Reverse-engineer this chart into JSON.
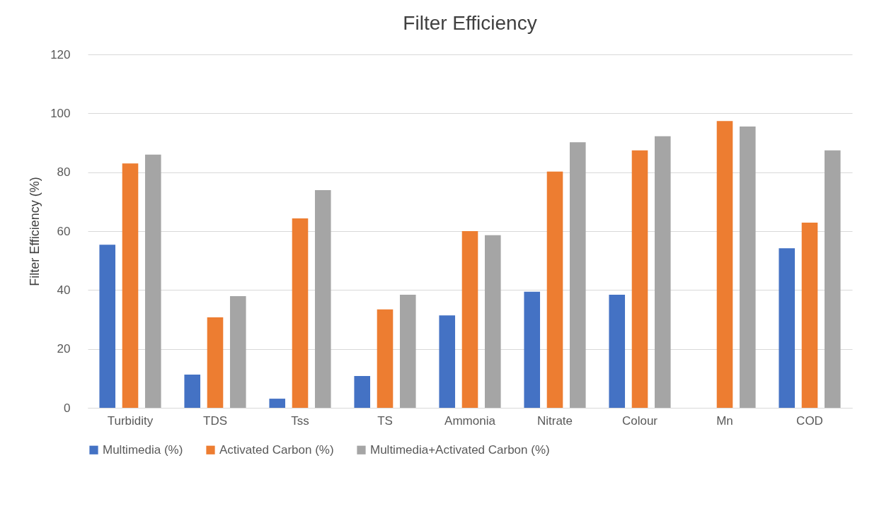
{
  "chart_data": {
    "type": "bar",
    "title": "Filter Efficiency",
    "ylabel": "Filter Efficiency (%)",
    "categories": [
      "Turbidity",
      "TDS",
      "Tss",
      "TS",
      "Ammonia",
      "Nitrate",
      "Colour",
      "Mn",
      "COD"
    ],
    "series": [
      {
        "name": "Multimedia (%)",
        "color": "#4472c4",
        "values": [
          55.4,
          11.3,
          3.1,
          10.8,
          31.4,
          39.4,
          38.4,
          0,
          54.2
        ]
      },
      {
        "name": "Activated Carbon (%)",
        "color": "#ed7d31",
        "values": [
          83,
          30.7,
          64.3,
          33.4,
          60,
          80.2,
          87.4,
          97.4,
          62.9
        ]
      },
      {
        "name": "Multimedia+Activated Carbon (%)",
        "color": "#a5a5a5",
        "values": [
          86,
          37.9,
          73.9,
          38.4,
          58.6,
          90.2,
          92.2,
          95.5,
          87.4
        ]
      }
    ],
    "ylim": [
      0,
      120
    ],
    "yticks": [
      0,
      20,
      40,
      60,
      80,
      100,
      120
    ],
    "grid": "y",
    "legend": "bottom"
  }
}
